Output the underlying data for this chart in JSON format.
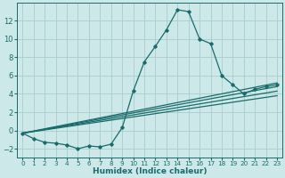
{
  "bg_color": "#cce8e8",
  "grid_color": "#aacccc",
  "line_color": "#1a6b6b",
  "line_width": 0.9,
  "marker": "D",
  "marker_size": 1.8,
  "xlabel": "Humidex (Indice chaleur)",
  "xlabel_fontsize": 6.5,
  "ytick_fontsize": 6,
  "xtick_fontsize": 5.2,
  "ylim": [
    -3,
    14
  ],
  "xlim": [
    -0.5,
    23.5
  ],
  "yticks": [
    -2,
    0,
    2,
    4,
    6,
    8,
    10,
    12
  ],
  "xticks": [
    0,
    1,
    2,
    3,
    4,
    5,
    6,
    7,
    8,
    9,
    10,
    11,
    12,
    13,
    14,
    15,
    16,
    17,
    18,
    19,
    20,
    21,
    22,
    23
  ],
  "series_x": [
    0,
    1,
    2,
    3,
    4,
    5,
    6,
    7,
    8,
    9,
    10,
    11,
    12,
    13,
    14,
    15,
    16,
    17,
    18,
    19,
    20,
    21,
    22,
    23
  ],
  "series_y": [
    -0.3,
    -0.9,
    -1.3,
    -1.4,
    -1.6,
    -2.0,
    -1.7,
    -1.8,
    -1.5,
    0.3,
    4.3,
    7.5,
    9.2,
    11.0,
    13.2,
    13.0,
    10.0,
    9.5,
    6.0,
    5.0,
    4.0,
    4.5,
    4.8,
    5.0
  ],
  "linear_series": [
    {
      "x": [
        0,
        23
      ],
      "y": [
        -0.3,
        3.8
      ]
    },
    {
      "x": [
        0,
        23
      ],
      "y": [
        -0.3,
        4.3
      ]
    },
    {
      "x": [
        0,
        23
      ],
      "y": [
        -0.3,
        4.8
      ]
    },
    {
      "x": [
        0,
        23
      ],
      "y": [
        -0.3,
        5.2
      ]
    }
  ]
}
